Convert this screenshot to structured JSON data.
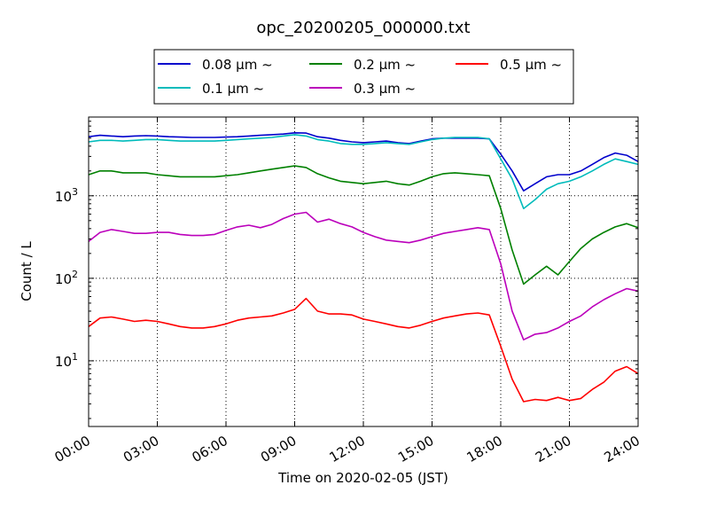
{
  "chart_data": {
    "type": "line",
    "title": "opc_20200205_000000.txt",
    "xlabel": "Time on 2020-02-05 (JST)",
    "ylabel": "Count / L",
    "y_scale": "log",
    "ylim": [
      1.6,
      9000
    ],
    "xlim": [
      "00:00",
      "24:00"
    ],
    "x_ticks": [
      "00:00",
      "03:00",
      "06:00",
      "09:00",
      "12:00",
      "15:00",
      "18:00",
      "21:00",
      "24:00"
    ],
    "y_ticks": [
      {
        "value": 10,
        "base": "10",
        "exp": "1"
      },
      {
        "value": 100,
        "base": "10",
        "exp": "2"
      },
      {
        "value": 1000,
        "base": "10",
        "exp": "3"
      }
    ],
    "grid": true,
    "legend_position": "top-center, above plot",
    "x": [
      "00:00",
      "00:30",
      "01:00",
      "01:30",
      "02:00",
      "02:30",
      "03:00",
      "03:30",
      "04:00",
      "04:30",
      "05:00",
      "05:30",
      "06:00",
      "06:30",
      "07:00",
      "07:30",
      "08:00",
      "08:30",
      "09:00",
      "09:30",
      "10:00",
      "10:30",
      "11:00",
      "11:30",
      "12:00",
      "12:30",
      "13:00",
      "13:30",
      "14:00",
      "14:30",
      "15:00",
      "15:30",
      "16:00",
      "16:30",
      "17:00",
      "17:30",
      "18:00",
      "18:30",
      "19:00",
      "19:30",
      "20:00",
      "20:30",
      "21:00",
      "21:30",
      "22:00",
      "22:30",
      "23:00",
      "23:30",
      "24:00"
    ],
    "series": [
      {
        "name": "0.08 µm ~",
        "color": "#0000cc",
        "values": [
          5200,
          5400,
          5300,
          5200,
          5300,
          5350,
          5300,
          5200,
          5150,
          5100,
          5100,
          5100,
          5150,
          5200,
          5300,
          5400,
          5500,
          5600,
          5800,
          5750,
          5200,
          5000,
          4700,
          4500,
          4400,
          4500,
          4600,
          4400,
          4300,
          4600,
          4900,
          5000,
          5000,
          5000,
          5000,
          4900,
          3200,
          2000,
          1150,
          1400,
          1700,
          1800,
          1800,
          2000,
          2400,
          2900,
          3300,
          3100,
          2600
        ]
      },
      {
        "name": "0.1 µm ~",
        "color": "#00bbbb",
        "values": [
          4500,
          4700,
          4700,
          4600,
          4700,
          4800,
          4800,
          4700,
          4600,
          4600,
          4600,
          4600,
          4700,
          4800,
          4900,
          5000,
          5100,
          5300,
          5500,
          5300,
          4800,
          4600,
          4300,
          4200,
          4200,
          4300,
          4400,
          4300,
          4200,
          4500,
          4800,
          5000,
          5100,
          5100,
          5100,
          4900,
          2800,
          1600,
          700,
          900,
          1200,
          1400,
          1500,
          1700,
          2000,
          2400,
          2800,
          2600,
          2400
        ]
      },
      {
        "name": "0.2 µm ~",
        "color": "#008000",
        "values": [
          1800,
          2000,
          2000,
          1900,
          1900,
          1900,
          1800,
          1750,
          1700,
          1700,
          1700,
          1700,
          1750,
          1800,
          1900,
          2000,
          2100,
          2200,
          2300,
          2200,
          1850,
          1650,
          1500,
          1450,
          1400,
          1450,
          1500,
          1400,
          1350,
          1500,
          1700,
          1850,
          1900,
          1850,
          1800,
          1750,
          700,
          220,
          85,
          110,
          140,
          110,
          160,
          230,
          300,
          360,
          420,
          460,
          410
        ]
      },
      {
        "name": "0.3 µm ~",
        "color": "#bb00bb",
        "values": [
          280,
          360,
          390,
          370,
          350,
          350,
          360,
          360,
          340,
          330,
          330,
          340,
          380,
          420,
          440,
          410,
          450,
          530,
          600,
          630,
          480,
          520,
          460,
          420,
          360,
          320,
          290,
          280,
          270,
          290,
          320,
          350,
          370,
          390,
          410,
          390,
          150,
          40,
          18,
          21,
          22,
          25,
          30,
          35,
          45,
          55,
          65,
          75,
          70
        ]
      },
      {
        "name": "0.5 µm ~",
        "color": "#ff0000",
        "values": [
          26,
          33,
          34,
          32,
          30,
          31,
          30,
          28,
          26,
          25,
          25,
          26,
          28,
          31,
          33,
          34,
          35,
          38,
          42,
          57,
          40,
          37,
          37,
          36,
          32,
          30,
          28,
          26,
          25,
          27,
          30,
          33,
          35,
          37,
          38,
          36,
          15,
          6,
          3.2,
          3.4,
          3.3,
          3.6,
          3.3,
          3.5,
          4.5,
          5.5,
          7.5,
          8.5,
          7
        ]
      }
    ]
  }
}
